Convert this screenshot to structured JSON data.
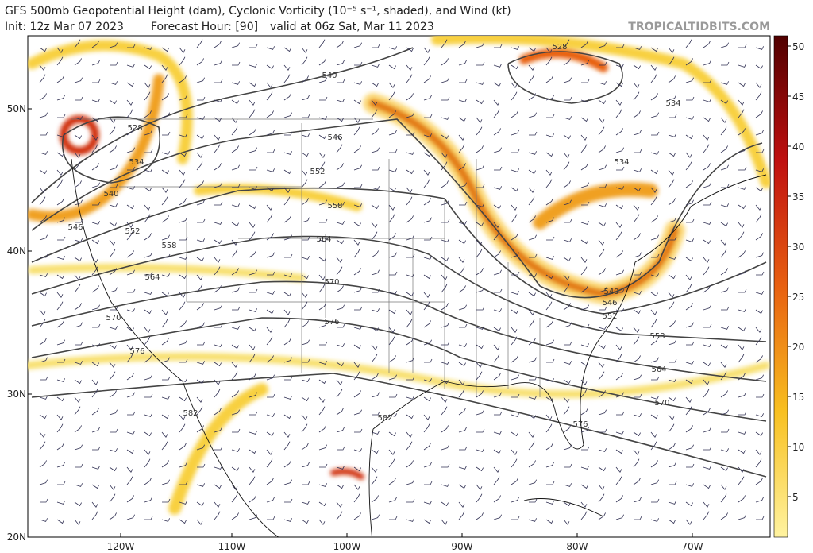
{
  "header": {
    "title": "GFS 500mb Geopotential Height (dam), Cyclonic Vorticity (10⁻⁵ s⁻¹, shaded), and Wind (kt)",
    "init": "Init: 12z Mar 07 2023",
    "forecast_hour": "Forecast Hour: [90]",
    "valid": "valid at 06z Sat, Mar 11 2023",
    "site": "TROPICALTIDBITS.COM"
  },
  "map": {
    "lat_labels": [
      "50N",
      "40N",
      "30N",
      "20N"
    ],
    "lon_labels": [
      "120W",
      "110W",
      "100W",
      "90W",
      "80W",
      "70W"
    ],
    "contour_labels": [
      "528",
      "540",
      "534",
      "528",
      "546",
      "534",
      "534",
      "552",
      "540",
      "558",
      "546",
      "552",
      "564",
      "558",
      "564",
      "570",
      "540",
      "546",
      "552",
      "570",
      "576",
      "558",
      "576",
      "564",
      "570",
      "582",
      "582",
      "576"
    ]
  },
  "colorbar": {
    "ticks": [
      5,
      10,
      15,
      20,
      25,
      30,
      35,
      40,
      45,
      50
    ]
  }
}
